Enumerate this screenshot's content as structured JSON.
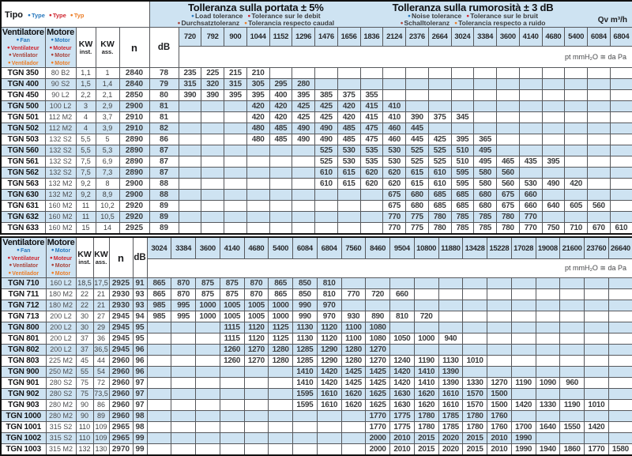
{
  "colors": {
    "accent_blue": "#2677bd",
    "accent_red": "#cf2630",
    "accent_darkred": "#a8433a",
    "accent_orange": "#ec7d26",
    "row_stripe": "#cee3f2",
    "grid_line": "#56585c",
    "outer_border": "#111111"
  },
  "tipo": {
    "label": "Tipo",
    "items": [
      {
        "text": "Type",
        "color": "blue"
      },
      {
        "text": "Type",
        "color": "red"
      },
      {
        "text": "Typ",
        "color": "orange"
      }
    ]
  },
  "tolerance_flow": {
    "title": "Tolleranza sulla portata  ± 5%",
    "line2": [
      {
        "text": "Load tolerance",
        "color": "blue"
      },
      {
        "text": "Tolerance sur le debit",
        "color": "red"
      }
    ],
    "line3": [
      {
        "text": "Durchsatztoleranz",
        "color": "darkred"
      },
      {
        "text": "Tolerancia respecto caudal",
        "color": "orange"
      }
    ]
  },
  "tolerance_noise": {
    "title": "Tolleranza sulla rumorosità  ± 3 dB",
    "line2": [
      {
        "text": "Noise tolerance",
        "color": "blue"
      },
      {
        "text": "Tolerance sur le bruit",
        "color": "red"
      }
    ],
    "line3": [
      {
        "text": "Schalltoleranz",
        "color": "darkred"
      },
      {
        "text": "Tolerancia respecto a ruido",
        "color": "orange"
      }
    ]
  },
  "qv_unit": "Qv m³/h",
  "pressure_unit": "pt mmH₂O ≅ da Pa",
  "columns": {
    "fan": {
      "label": "Ventilatore",
      "items": [
        {
          "text": "Fan",
          "color": "blue"
        },
        {
          "text": "Ventilateur",
          "color": "red"
        },
        {
          "text": "Ventilator",
          "color": "darkred"
        },
        {
          "text": "Ventilador",
          "color": "orange"
        }
      ]
    },
    "motor": {
      "label": "Motore",
      "items": [
        {
          "text": "Motor",
          "color": "blue"
        },
        {
          "text": "Moteur",
          "color": "red"
        },
        {
          "text": "Motor",
          "color": "darkred"
        },
        {
          "text": "Motor",
          "color": "orange"
        }
      ]
    },
    "kw_inst": {
      "line1": "KW",
      "line2": "inst."
    },
    "kw_ass": {
      "line1": "KW",
      "line2": "ass."
    },
    "speed": "n",
    "noise": "dB"
  },
  "tables": [
    {
      "qv": [
        "720",
        "792",
        "900",
        "1044",
        "1152",
        "1296",
        "1476",
        "1656",
        "1836",
        "2124",
        "2376",
        "2664",
        "3024",
        "3384",
        "3600",
        "4140",
        "4680",
        "5400",
        "6084",
        "6804"
      ],
      "rows": [
        {
          "model": "TGN 350",
          "motor": "80 B2",
          "kw_inst": "1,1",
          "kw_ass": "1",
          "n": "2840",
          "db": "78",
          "pressures": {
            "offset": 0,
            "values": [
              "235",
              "225",
              "215",
              "210"
            ]
          }
        },
        {
          "model": "TGN 400",
          "motor": "90 S2",
          "kw_inst": "1,5",
          "kw_ass": "1,4",
          "n": "2840",
          "db": "79",
          "pressures": {
            "offset": 0,
            "values": [
              "315",
              "320",
              "315",
              "305",
              "295",
              "280"
            ]
          }
        },
        {
          "model": "TGN 450",
          "motor": "90 L2",
          "kw_inst": "2,2",
          "kw_ass": "2,1",
          "n": "2850",
          "db": "80",
          "pressures": {
            "offset": 0,
            "values": [
              "390",
              "390",
              "395",
              "395",
              "400",
              "395",
              "385",
              "375",
              "355"
            ]
          }
        },
        {
          "model": "TGN 500",
          "motor": "100 L2",
          "kw_inst": "3",
          "kw_ass": "2,9",
          "n": "2900",
          "db": "81",
          "pressures": {
            "offset": 3,
            "values": [
              "420",
              "420",
              "425",
              "425",
              "420",
              "415",
              "410"
            ]
          }
        },
        {
          "model": "TGN 501",
          "motor": "112 M2",
          "kw_inst": "4",
          "kw_ass": "3,7",
          "n": "2910",
          "db": "81",
          "pressures": {
            "offset": 3,
            "values": [
              "420",
              "420",
              "425",
              "425",
              "420",
              "415",
              "410",
              "390",
              "375",
              "345"
            ]
          }
        },
        {
          "model": "TGN 502",
          "motor": "112 M2",
          "kw_inst": "4",
          "kw_ass": "3,9",
          "n": "2910",
          "db": "82",
          "pressures": {
            "offset": 3,
            "values": [
              "480",
              "485",
              "490",
              "490",
              "485",
              "475",
              "460",
              "445"
            ]
          }
        },
        {
          "model": "TGN 503",
          "motor": "132 S2",
          "kw_inst": "5,5",
          "kw_ass": "5",
          "n": "2890",
          "db": "86",
          "pressures": {
            "offset": 3,
            "values": [
              "480",
              "485",
              "490",
              "490",
              "485",
              "475",
              "460",
              "445",
              "425",
              "395",
              "365"
            ]
          }
        },
        {
          "model": "TGN 560",
          "motor": "132 S2",
          "kw_inst": "5,5",
          "kw_ass": "5,3",
          "n": "2890",
          "db": "87",
          "pressures": {
            "offset": 6,
            "values": [
              "525",
              "530",
              "535",
              "530",
              "525",
              "525",
              "510",
              "495"
            ]
          }
        },
        {
          "model": "TGN 561",
          "motor": "132 S2",
          "kw_inst": "7,5",
          "kw_ass": "6,9",
          "n": "2890",
          "db": "87",
          "pressures": {
            "offset": 6,
            "values": [
              "525",
              "530",
              "535",
              "530",
              "525",
              "525",
              "510",
              "495",
              "465",
              "435",
              "395"
            ]
          }
        },
        {
          "model": "TGN 562",
          "motor": "132 S2",
          "kw_inst": "7,5",
          "kw_ass": "7,3",
          "n": "2890",
          "db": "87",
          "pressures": {
            "offset": 6,
            "values": [
              "610",
              "615",
              "620",
              "620",
              "615",
              "610",
              "595",
              "580",
              "560"
            ]
          }
        },
        {
          "model": "TGN 563",
          "motor": "132 M2",
          "kw_inst": "9,2",
          "kw_ass": "8",
          "n": "2900",
          "db": "88",
          "pressures": {
            "offset": 6,
            "values": [
              "610",
              "615",
              "620",
              "620",
              "615",
              "610",
              "595",
              "580",
              "560",
              "530",
              "490",
              "420"
            ]
          }
        },
        {
          "model": "TGN 630",
          "motor": "132 M2",
          "kw_inst": "9,2",
          "kw_ass": "8,9",
          "n": "2900",
          "db": "88",
          "pressures": {
            "offset": 9,
            "values": [
              "675",
              "680",
              "685",
              "685",
              "680",
              "675",
              "660"
            ]
          }
        },
        {
          "model": "TGN 631",
          "motor": "160 M2",
          "kw_inst": "11",
          "kw_ass": "10,2",
          "n": "2920",
          "db": "89",
          "pressures": {
            "offset": 9,
            "values": [
              "675",
              "680",
              "685",
              "685",
              "680",
              "675",
              "660",
              "640",
              "605",
              "560"
            ]
          }
        },
        {
          "model": "TGN 632",
          "motor": "160 M2",
          "kw_inst": "11",
          "kw_ass": "10,5",
          "n": "2920",
          "db": "89",
          "pressures": {
            "offset": 9,
            "values": [
              "770",
              "775",
              "780",
              "785",
              "785",
              "780",
              "770"
            ]
          }
        },
        {
          "model": "TGN 633",
          "motor": "160 M2",
          "kw_inst": "15",
          "kw_ass": "14",
          "n": "2925",
          "db": "89",
          "pressures": {
            "offset": 9,
            "values": [
              "770",
              "775",
              "780",
              "785",
              "785",
              "780",
              "770",
              "750",
              "710",
              "670",
              "610"
            ]
          }
        }
      ]
    },
    {
      "qv": [
        "3024",
        "3384",
        "3600",
        "4140",
        "4680",
        "5400",
        "6084",
        "6804",
        "7560",
        "8460",
        "9504",
        "10800",
        "11880",
        "13428",
        "15228",
        "17028",
        "19008",
        "21600",
        "23760",
        "26640"
      ],
      "rows": [
        {
          "model": "TGN 710",
          "motor": "160 L2",
          "kw_inst": "18,5",
          "kw_ass": "17,5",
          "n": "2925",
          "db": "91",
          "pressures": {
            "offset": 0,
            "values": [
              "865",
              "870",
              "875",
              "875",
              "870",
              "865",
              "850",
              "810"
            ]
          }
        },
        {
          "model": "TGN 711",
          "motor": "180 M2",
          "kw_inst": "22",
          "kw_ass": "21",
          "n": "2930",
          "db": "93",
          "pressures": {
            "offset": 0,
            "values": [
              "865",
              "870",
              "875",
              "875",
              "870",
              "865",
              "850",
              "810",
              "770",
              "720",
              "660"
            ]
          }
        },
        {
          "model": "TGN 712",
          "motor": "180 M2",
          "kw_inst": "22",
          "kw_ass": "21",
          "n": "2930",
          "db": "93",
          "pressures": {
            "offset": 0,
            "values": [
              "985",
              "995",
              "1000",
              "1005",
              "1005",
              "1000",
              "990",
              "970"
            ]
          }
        },
        {
          "model": "TGN 713",
          "motor": "200 L2",
          "kw_inst": "30",
          "kw_ass": "27",
          "n": "2945",
          "db": "94",
          "pressures": {
            "offset": 0,
            "values": [
              "985",
              "995",
              "1000",
              "1005",
              "1005",
              "1000",
              "990",
              "970",
              "930",
              "890",
              "810",
              "720"
            ]
          }
        },
        {
          "model": "TGN 800",
          "motor": "200 L2",
          "kw_inst": "30",
          "kw_ass": "29",
          "n": "2945",
          "db": "95",
          "pressures": {
            "offset": 3,
            "values": [
              "1115",
              "1120",
              "1125",
              "1130",
              "1120",
              "1100",
              "1080"
            ]
          }
        },
        {
          "model": "TGN 801",
          "motor": "200 L2",
          "kw_inst": "37",
          "kw_ass": "36",
          "n": "2945",
          "db": "95",
          "pressures": {
            "offset": 3,
            "values": [
              "1115",
              "1120",
              "1125",
              "1130",
              "1120",
              "1100",
              "1080",
              "1050",
              "1000",
              "940"
            ]
          }
        },
        {
          "model": "TGN 802",
          "motor": "200 L2",
          "kw_inst": "37",
          "kw_ass": "36,5",
          "n": "2945",
          "db": "96",
          "pressures": {
            "offset": 3,
            "values": [
              "1260",
              "1270",
              "1280",
              "1285",
              "1290",
              "1280",
              "1270"
            ]
          }
        },
        {
          "model": "TGN 803",
          "motor": "225 M2",
          "kw_inst": "45",
          "kw_ass": "44",
          "n": "2960",
          "db": "96",
          "pressures": {
            "offset": 3,
            "values": [
              "1260",
              "1270",
              "1280",
              "1285",
              "1290",
              "1280",
              "1270",
              "1240",
              "1190",
              "1130",
              "1010"
            ]
          }
        },
        {
          "model": "TGN 900",
          "motor": "250 M2",
          "kw_inst": "55",
          "kw_ass": "54",
          "n": "2960",
          "db": "96",
          "pressures": {
            "offset": 6,
            "values": [
              "1410",
              "1420",
              "1425",
              "1425",
              "1420",
              "1410",
              "1390"
            ]
          }
        },
        {
          "model": "TGN 901",
          "motor": "280 S2",
          "kw_inst": "75",
          "kw_ass": "72",
          "n": "2960",
          "db": "97",
          "pressures": {
            "offset": 6,
            "values": [
              "1410",
              "1420",
              "1425",
              "1425",
              "1420",
              "1410",
              "1390",
              "1330",
              "1270",
              "1190",
              "1090",
              "960"
            ]
          }
        },
        {
          "model": "TGN 902",
          "motor": "280 S2",
          "kw_inst": "75",
          "kw_ass": "73,5",
          "n": "2960",
          "db": "97",
          "pressures": {
            "offset": 6,
            "values": [
              "1595",
              "1610",
              "1620",
              "1625",
              "1630",
              "1620",
              "1610",
              "1570",
              "1500"
            ]
          }
        },
        {
          "model": "TGN 903",
          "motor": "280 M2",
          "kw_inst": "90",
          "kw_ass": "86",
          "n": "2960",
          "db": "97",
          "pressures": {
            "offset": 6,
            "values": [
              "1595",
              "1610",
              "1620",
              "1625",
              "1630",
              "1620",
              "1610",
              "1570",
              "1500",
              "1420",
              "1330",
              "1190",
              "1010"
            ]
          }
        },
        {
          "model": "TGN 1000",
          "motor": "280 M2",
          "kw_inst": "90",
          "kw_ass": "89",
          "n": "2960",
          "db": "98",
          "pressures": {
            "offset": 9,
            "values": [
              "1770",
              "1775",
              "1780",
              "1785",
              "1780",
              "1760"
            ]
          }
        },
        {
          "model": "TGN 1001",
          "motor": "315 S2",
          "kw_inst": "110",
          "kw_ass": "109",
          "n": "2965",
          "db": "98",
          "pressures": {
            "offset": 9,
            "values": [
              "1770",
              "1775",
              "1780",
              "1785",
              "1780",
              "1760",
              "1700",
              "1640",
              "1550",
              "1420"
            ]
          }
        },
        {
          "model": "TGN 1002",
          "motor": "315 S2",
          "kw_inst": "110",
          "kw_ass": "109",
          "n": "2965",
          "db": "99",
          "pressures": {
            "offset": 9,
            "values": [
              "2000",
              "2010",
              "2015",
              "2020",
              "2015",
              "2010",
              "1990"
            ]
          }
        },
        {
          "model": "TGN 1003",
          "motor": "315 M2",
          "kw_inst": "132",
          "kw_ass": "130",
          "n": "2970",
          "db": "99",
          "pressures": {
            "offset": 9,
            "values": [
              "2000",
              "2010",
              "2015",
              "2020",
              "2015",
              "2010",
              "1990",
              "1940",
              "1860",
              "1770",
              "1580"
            ]
          }
        }
      ]
    }
  ]
}
